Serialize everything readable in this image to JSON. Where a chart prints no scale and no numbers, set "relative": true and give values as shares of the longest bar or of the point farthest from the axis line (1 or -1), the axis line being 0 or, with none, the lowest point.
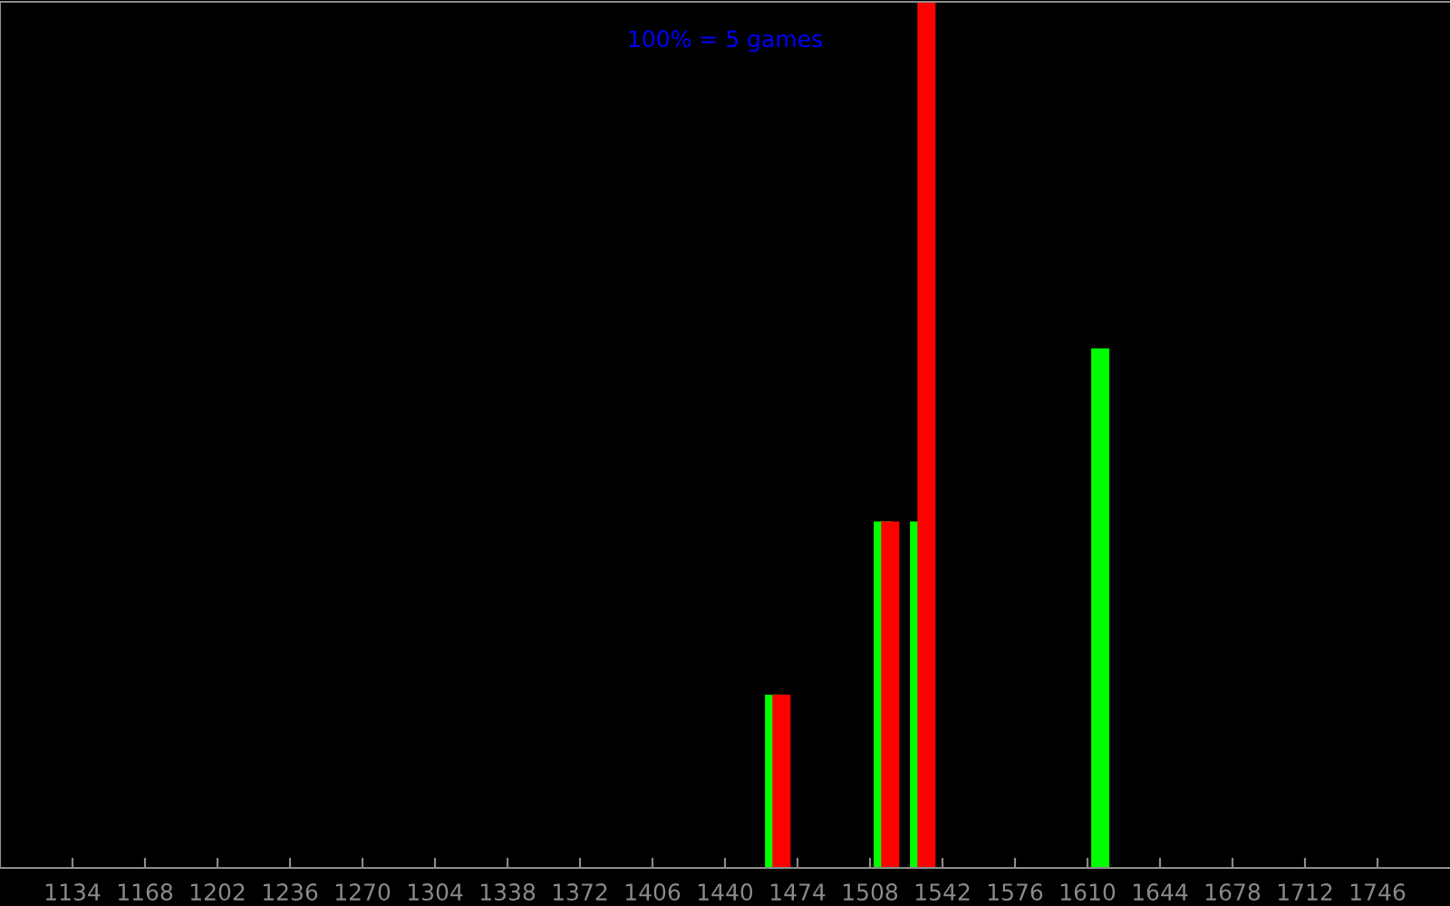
{
  "chart_data": {
    "type": "bar",
    "relative": true,
    "annotations": [
      "100% = 5 games"
    ],
    "xlim": [
      1100,
      1780
    ],
    "xticks": [
      1134,
      1168,
      1202,
      1236,
      1270,
      1304,
      1338,
      1372,
      1406,
      1440,
      1474,
      1508,
      1542,
      1576,
      1610,
      1644,
      1678,
      1712,
      1746
    ],
    "series": [
      {
        "color": "#00ff00",
        "x": [
          1463,
          1514,
          1531,
          1616
        ],
        "values": [
          0.2,
          0.4,
          0.4,
          0.6
        ]
      },
      {
        "color": "#ff0000",
        "x": [
          1466.5,
          1517.5,
          1534.5
        ],
        "values": [
          0.2,
          0.4,
          1.0
        ]
      }
    ],
    "grid": false,
    "legend": false
  }
}
